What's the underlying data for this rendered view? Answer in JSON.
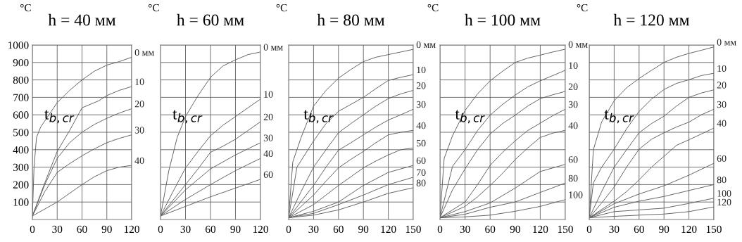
{
  "chart_data": [
    {
      "type": "line",
      "title": "h = 40 мм",
      "ylabel": "°C",
      "xlim": [
        0,
        120
      ],
      "ylim": [
        0,
        1000
      ],
      "xticks": [
        0,
        30,
        60,
        90,
        120
      ],
      "yticks": [
        100,
        200,
        300,
        400,
        500,
        600,
        700,
        800,
        900,
        1000
      ],
      "grid": true,
      "legend": false,
      "annotations": [
        "t$_{b,cr}$"
      ],
      "series": [
        {
          "name": "0 мм",
          "color": "#606060",
          "x": [
            0,
            2,
            5,
            10,
            20,
            30,
            45,
            60,
            75,
            90,
            105,
            120
          ],
          "values": [
            20,
            300,
            470,
            530,
            600,
            670,
            740,
            800,
            850,
            885,
            905,
            930
          ]
        },
        {
          "name": "10",
          "color": "#606060",
          "x": [
            0,
            15,
            30,
            45,
            60,
            80,
            90,
            105,
            120
          ],
          "values": [
            20,
            210,
            390,
            510,
            640,
            680,
            710,
            740,
            762
          ]
        },
        {
          "name": "20",
          "color": "#606060",
          "x": [
            0,
            15,
            30,
            45,
            60,
            75,
            90,
            105,
            120
          ],
          "values": [
            20,
            200,
            350,
            440,
            500,
            545,
            580,
            610,
            635
          ]
        },
        {
          "name": "30",
          "color": "#606060",
          "x": [
            0,
            15,
            30,
            45,
            60,
            75,
            90,
            105,
            120
          ],
          "values": [
            20,
            160,
            270,
            320,
            365,
            405,
            440,
            465,
            485
          ]
        },
        {
          "name": "40",
          "color": "#606060",
          "x": [
            0,
            30,
            60,
            75,
            90,
            105,
            120
          ],
          "values": [
            20,
            100,
            200,
            245,
            280,
            300,
            310
          ]
        }
      ]
    },
    {
      "type": "line",
      "title": "h = 60 мм",
      "ylabel": "°C",
      "xlim": [
        0,
        120
      ],
      "ylim": [
        0,
        1000
      ],
      "xticks": [
        0,
        30,
        60,
        90,
        120
      ],
      "yticks": [
        100,
        200,
        300,
        400,
        500,
        600,
        700,
        800,
        900,
        1000
      ],
      "grid": true,
      "legend": false,
      "tick_labels": "x",
      "annotations": [
        "t$_{b,cr}$"
      ],
      "series": [
        {
          "name": "0 мм",
          "color": "#606060",
          "x": [
            0,
            10,
            20,
            30,
            45,
            60,
            75,
            90,
            105,
            120
          ],
          "values": [
            20,
            280,
            470,
            590,
            710,
            815,
            880,
            915,
            945,
            960
          ]
        },
        {
          "name": "10",
          "color": "#606060",
          "x": [
            0,
            15,
            30,
            45,
            60,
            75,
            90,
            105,
            120
          ],
          "values": [
            20,
            160,
            295,
            390,
            480,
            540,
            590,
            640,
            690
          ]
        },
        {
          "name": "20",
          "color": "#606060",
          "x": [
            0,
            30,
            45,
            60,
            75,
            90,
            105,
            120
          ],
          "values": [
            20,
            200,
            290,
            385,
            420,
            460,
            510,
            560
          ]
        },
        {
          "name": "30",
          "color": "#606060",
          "x": [
            0,
            30,
            60,
            90,
            120
          ],
          "values": [
            20,
            170,
            290,
            370,
            440
          ]
        },
        {
          "name": "40",
          "color": "#606060",
          "x": [
            0,
            30,
            60,
            90,
            120
          ],
          "values": [
            20,
            115,
            200,
            280,
            350
          ]
        },
        {
          "name": "60",
          "color": "#606060",
          "x": [
            0,
            30,
            60,
            90,
            120
          ],
          "values": [
            20,
            75,
            130,
            180,
            230
          ]
        }
      ]
    },
    {
      "type": "line",
      "title": "h = 80 мм",
      "ylabel": "°C",
      "xlim": [
        0,
        150
      ],
      "ylim": [
        0,
        1000
      ],
      "xticks": [
        0,
        30,
        60,
        90,
        120,
        150
      ],
      "yticks": [
        100,
        200,
        300,
        400,
        500,
        600,
        700,
        800,
        900,
        1000
      ],
      "grid": true,
      "legend": false,
      "tick_labels": "x",
      "annotations": [
        "t$_{b,cr}$"
      ],
      "series": [
        {
          "name": "0 мм",
          "color": "#606060",
          "x": [
            0,
            5,
            15,
            30,
            45,
            60,
            75,
            90,
            105,
            120,
            135,
            150
          ],
          "values": [
            10,
            330,
            470,
            650,
            740,
            810,
            860,
            905,
            930,
            945,
            960,
            975
          ]
        },
        {
          "name": "10",
          "color": "#606060",
          "x": [
            0,
            10,
            30,
            45,
            60,
            75,
            90,
            105,
            120,
            135,
            150
          ],
          "values": [
            10,
            300,
            450,
            550,
            620,
            660,
            700,
            750,
            797,
            815,
            830
          ]
        },
        {
          "name": "20",
          "color": "#606060",
          "x": [
            0,
            15,
            30,
            45,
            60,
            75,
            90,
            105,
            120,
            135,
            150
          ],
          "values": [
            10,
            160,
            300,
            400,
            497,
            550,
            600,
            650,
            693,
            720,
            740
          ]
        },
        {
          "name": "30",
          "color": "#606060",
          "x": [
            0,
            30,
            45,
            60,
            75,
            90,
            105,
            120,
            135,
            150
          ],
          "values": [
            10,
            195,
            300,
            397,
            440,
            485,
            530,
            570,
            600,
            632
          ]
        },
        {
          "name": "40",
          "color": "#606060",
          "x": [
            0,
            30,
            45,
            60,
            75,
            90,
            105,
            120,
            135,
            150
          ],
          "values": [
            10,
            140,
            220,
            296,
            345,
            390,
            440,
            485,
            500,
            511
          ]
        },
        {
          "name": "50",
          "color": "#606060",
          "x": [
            0,
            30,
            45,
            60,
            75,
            90,
            105,
            120,
            135,
            150
          ],
          "values": [
            10,
            85,
            140,
            195,
            245,
            296,
            335,
            370,
            400,
            410
          ]
        },
        {
          "name": "60",
          "color": "#606060",
          "x": [
            0,
            30,
            60,
            90,
            120,
            150
          ],
          "values": [
            10,
            47,
            100,
            195,
            270,
            310
          ]
        },
        {
          "name": "70",
          "color": "#606060",
          "x": [
            0,
            30,
            60,
            90,
            120,
            150
          ],
          "values": [
            10,
            35,
            85,
            140,
            200,
            242
          ]
        },
        {
          "name": "80",
          "color": "#606060",
          "x": [
            0,
            30,
            60,
            90,
            120,
            150
          ],
          "values": [
            10,
            25,
            55,
            100,
            150,
            182
          ]
        }
      ]
    },
    {
      "type": "line",
      "title": "h = 100 мм",
      "ylabel": "°C",
      "xlim": [
        0,
        150
      ],
      "ylim": [
        0,
        1000
      ],
      "xticks": [
        0,
        30,
        60,
        90,
        120,
        150
      ],
      "yticks": [
        100,
        200,
        300,
        400,
        500,
        600,
        700,
        800,
        900,
        1000
      ],
      "grid": true,
      "legend": false,
      "tick_labels": "x",
      "annotations": [
        "t$_{b,cr}$"
      ],
      "series": [
        {
          "name": "0 мм",
          "color": "#606060",
          "x": [
            0,
            5,
            15,
            30,
            45,
            60,
            75,
            90,
            105,
            120,
            135,
            150
          ],
          "values": [
            10,
            350,
            480,
            625,
            720,
            795,
            850,
            900,
            925,
            942,
            960,
            976
          ]
        },
        {
          "name": "10",
          "color": "#606060",
          "x": [
            0,
            15,
            30,
            45,
            60,
            75,
            90,
            105,
            120,
            135,
            150
          ],
          "values": [
            10,
            305,
            400,
            510,
            598,
            660,
            713,
            760,
            795,
            825,
            855
          ]
        },
        {
          "name": "20",
          "color": "#606060",
          "x": [
            0,
            15,
            30,
            45,
            60,
            75,
            90,
            105,
            120,
            135,
            150
          ],
          "values": [
            10,
            170,
            290,
            400,
            490,
            550,
            598,
            650,
            693,
            715,
            734
          ]
        },
        {
          "name": "30",
          "color": "#606060",
          "x": [
            0,
            30,
            45,
            60,
            75,
            90,
            105,
            120,
            135,
            150
          ],
          "values": [
            10,
            100,
            200,
            310,
            385,
            451,
            510,
            552,
            595,
            632
          ]
        },
        {
          "name": "40",
          "color": "#606060",
          "x": [
            0,
            30,
            45,
            60,
            75,
            90,
            105,
            120,
            135,
            150
          ],
          "values": [
            10,
            75,
            130,
            195,
            265,
            343,
            410,
            470,
            495,
            511
          ]
        },
        {
          "name": "60",
          "color": "#606060",
          "x": [
            0,
            30,
            60,
            90,
            120,
            150
          ],
          "values": [
            10,
            45,
            95,
            180,
            275,
            316
          ]
        },
        {
          "name": "80",
          "color": "#606060",
          "x": [
            0,
            30,
            60,
            90,
            120,
            150
          ],
          "values": [
            10,
            30,
            70,
            100,
            155,
            209
          ]
        },
        {
          "name": "100",
          "color": "#606060",
          "x": [
            0,
            30,
            60,
            90,
            120,
            150
          ],
          "values": [
            10,
            15,
            25,
            47,
            75,
            114
          ]
        }
      ]
    },
    {
      "type": "line",
      "title": "h = 120 мм",
      "ylabel": "°C",
      "xlim": [
        0,
        150
      ],
      "ylim": [
        0,
        1000
      ],
      "xticks": [
        0,
        30,
        60,
        90,
        120,
        150
      ],
      "yticks": [
        100,
        200,
        300,
        400,
        500,
        600,
        700,
        800,
        900,
        1000
      ],
      "grid": true,
      "legend": false,
      "tick_labels": "x",
      "annotations": [
        "t$_{b,cr}$"
      ],
      "series": [
        {
          "name": "0 мм",
          "color": "#606060",
          "x": [
            0,
            5,
            15,
            30,
            45,
            60,
            75,
            90,
            105,
            120,
            135,
            150
          ],
          "values": [
            10,
            400,
            560,
            680,
            755,
            808,
            855,
            900,
            930,
            952,
            970,
            989
          ]
        },
        {
          "name": "10",
          "color": "#606060",
          "x": [
            0,
            5,
            15,
            30,
            45,
            60,
            75,
            90,
            105,
            120,
            135,
            150
          ],
          "values": [
            10,
            210,
            300,
            403,
            520,
            619,
            690,
            745,
            780,
            801,
            825,
            838
          ]
        },
        {
          "name": "20",
          "color": "#606060",
          "x": [
            0,
            15,
            30,
            45,
            60,
            75,
            90,
            105,
            120,
            135,
            150
          ],
          "values": [
            10,
            160,
            300,
            400,
            497,
            550,
            592,
            650,
            700,
            725,
            743
          ]
        },
        {
          "name": "30",
          "color": "#606060",
          "x": [
            0,
            15,
            30,
            45,
            60,
            75,
            90,
            105,
            120,
            135,
            150
          ],
          "values": [
            10,
            95,
            186,
            300,
            403,
            460,
            497,
            530,
            558,
            600,
            632
          ]
        },
        {
          "name": "40",
          "color": "#606060",
          "x": [
            0,
            30,
            45,
            60,
            75,
            90,
            105,
            120,
            135,
            150
          ],
          "values": [
            10,
            105,
            160,
            227,
            300,
            362,
            425,
            457,
            490,
            524
          ]
        },
        {
          "name": "60",
          "color": "#606060",
          "x": [
            0,
            30,
            60,
            90,
            120,
            150
          ],
          "values": [
            10,
            90,
            146,
            193,
            254,
            322
          ]
        },
        {
          "name": "80",
          "color": "#606060",
          "x": [
            0,
            30,
            60,
            90,
            120,
            150
          ],
          "values": [
            10,
            70,
            105,
            132,
            166,
            200
          ]
        },
        {
          "name": "100",
          "color": "#606060",
          "x": [
            0,
            30,
            60,
            90,
            120,
            150
          ],
          "values": [
            10,
            45,
            55,
            65,
            92,
            122
          ]
        },
        {
          "name": "120",
          "color": "#606060",
          "x": [
            0,
            30,
            60,
            90,
            120,
            150
          ],
          "values": [
            10,
            18,
            25,
            31,
            45,
            72
          ]
        }
      ]
    }
  ]
}
